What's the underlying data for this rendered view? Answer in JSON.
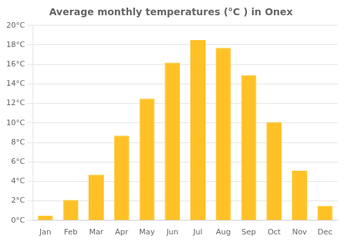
{
  "chart_data": {
    "type": "bar",
    "title": "Average monthly temperatures (°C ) in Onex",
    "categories": [
      "Jan",
      "Feb",
      "Mar",
      "Apr",
      "May",
      "Jun",
      "Jul",
      "Aug",
      "Sep",
      "Oct",
      "Nov",
      "Dec"
    ],
    "values": [
      0.5,
      2.1,
      4.7,
      8.7,
      12.5,
      16.2,
      18.5,
      17.7,
      14.9,
      10.1,
      5.1,
      1.5
    ],
    "color": "#FFC125",
    "ylim": [
      0,
      20
    ],
    "yticks": [
      {
        "value": 0,
        "label": "0°C"
      },
      {
        "value": 2,
        "label": "2°C"
      },
      {
        "value": 4,
        "label": "4°C"
      },
      {
        "value": 6,
        "label": "6°C"
      },
      {
        "value": 8,
        "label": "8°C"
      },
      {
        "value": 10,
        "label": "10°C"
      },
      {
        "value": 12,
        "label": "12°C"
      },
      {
        "value": 14,
        "label": "14°C"
      },
      {
        "value": 16,
        "label": "16°C"
      },
      {
        "value": 18,
        "label": "18°C"
      },
      {
        "value": 20,
        "label": "20°C"
      }
    ],
    "grid": true
  }
}
